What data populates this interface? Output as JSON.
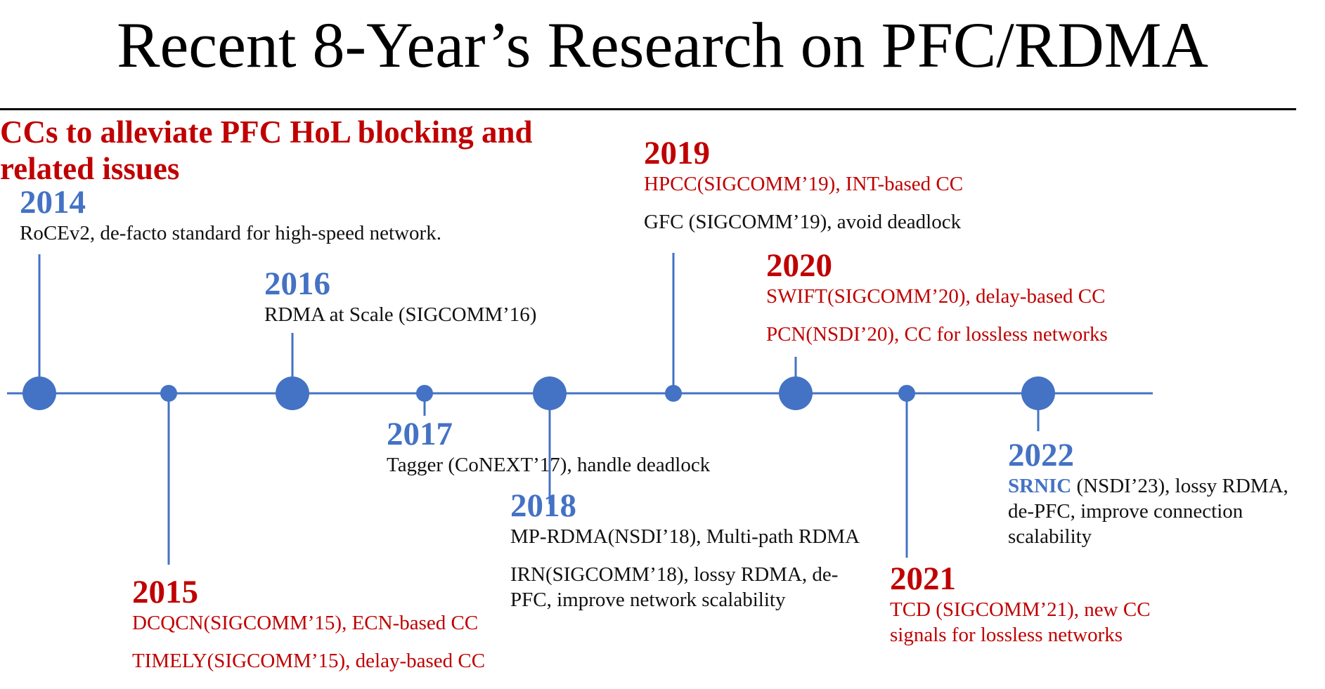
{
  "title": "Recent 8-Year’s Research on PFC/RDMA",
  "heading": "CCs to alleviate PFC HoL blocking and related issues",
  "colors": {
    "blue": "#4472c4",
    "red": "#c00000",
    "text": "#111111"
  },
  "events": {
    "e2014": {
      "year": "2014",
      "lines": [
        "RoCEv2, de-facto standard for high-speed network."
      ]
    },
    "e2015": {
      "year": "2015",
      "lines": [
        "DCQCN(SIGCOMM’15), ECN-based CC",
        "TIMELY(SIGCOMM’15), delay-based CC"
      ]
    },
    "e2016": {
      "year": "2016",
      "lines": [
        "RDMA at Scale (SIGCOMM’16)"
      ]
    },
    "e2017": {
      "year": "2017",
      "lines": [
        "Tagger (CoNEXT’17), handle deadlock"
      ]
    },
    "e2018": {
      "year": "2018",
      "lines": [
        "MP-RDMA(NSDI’18), Multi-path RDMA",
        "IRN(SIGCOMM’18), lossy RDMA, de-",
        "PFC, improve network scalability"
      ]
    },
    "e2019": {
      "year": "2019",
      "lines": [
        "HPCC(SIGCOMM’19), INT-based CC",
        "GFC (SIGCOMM’19), avoid deadlock"
      ]
    },
    "e2020": {
      "year": "2020",
      "lines": [
        "SWIFT(SIGCOMM’20), delay-based CC",
        "PCN(NSDI’20), CC for lossless networks"
      ]
    },
    "e2021": {
      "year": "2021",
      "lines": [
        "TCD (SIGCOMM’21), new CC",
        "signals for lossless networks"
      ]
    },
    "e2022": {
      "year": "2022",
      "highlight": "SRNIC",
      "lines": [
        " (NSDI’23), lossy RDMA,",
        "de-PFC, improve connection",
        "scalability"
      ]
    }
  }
}
